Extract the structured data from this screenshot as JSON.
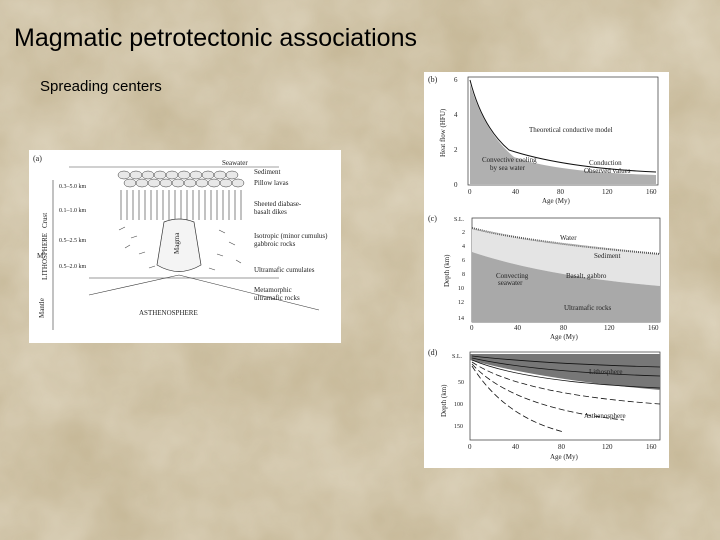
{
  "slide": {
    "title": "Magmatic petrotectonic associations",
    "bullet": "Spreading centers"
  },
  "figure_a": {
    "panel_label": "(a)",
    "labels": {
      "seawater": "Seawater",
      "sediment": "Sediment",
      "pillow_lavas": "Pillow lavas",
      "sheeted_dikes_1": "Sheeted diabase-",
      "sheeted_dikes_2": "basalt dikes",
      "isotropic_1": "Isotropic (minor cumulus)",
      "isotropic_2": "gabbroic rocks",
      "ultramafic_cumulates": "Ultramafic cumulates",
      "metamorphic_1": "Metamorphic",
      "metamorphic_2": "ultramafic rocks",
      "asthenosphere": "ASTHENOSPHERE",
      "magma": "Magma",
      "crust": "Crust",
      "mantle": "Mantle",
      "lithosphere": "LITHOSPHERE",
      "moho": "M",
      "depth_1": "0.3–5.0 km",
      "depth_2": "0.1–1.0 km",
      "depth_3": "0.5–2.5 km",
      "depth_4": "0.5–2.0 km"
    }
  },
  "figure_b": {
    "panel_label": "(b)",
    "ylabel": "Heat flow (HFU)",
    "xlabel": "Age (My)",
    "y_ticks": [
      "6",
      "4",
      "2",
      "0"
    ],
    "x_ticks": [
      "0",
      "40",
      "80",
      "120",
      "160"
    ],
    "labels": {
      "model": "Theoretical conductive model",
      "convective_1": "Convective cooling",
      "convective_2": "by sea water",
      "conduction": "Conduction",
      "observed": "Observed values"
    }
  },
  "figure_c": {
    "panel_label": "(c)",
    "ylabel": "Depth (km)",
    "xlabel": "Age (My)",
    "y_ticks": [
      "S.L.",
      "2",
      "4",
      "6",
      "8",
      "10",
      "12",
      "14"
    ],
    "x_ticks": [
      "0",
      "40",
      "80",
      "120",
      "160"
    ],
    "labels": {
      "water": "Water",
      "sediment": "Sediment",
      "basalt": "Basalt, gabbro",
      "seawater_1": "Convecting",
      "seawater_2": "seawater",
      "ultramafic": "Ultramafic rocks"
    }
  },
  "figure_d": {
    "panel_label": "(d)",
    "ylabel": "Depth (km)",
    "xlabel": "Age (My)",
    "y_ticks": [
      "S.L.",
      "50",
      "100",
      "150"
    ],
    "x_ticks": [
      "0",
      "40",
      "80",
      "120",
      "160"
    ],
    "labels": {
      "lithosphere": "Lithosphere",
      "asthenosphere": "Asthenosphere"
    }
  }
}
